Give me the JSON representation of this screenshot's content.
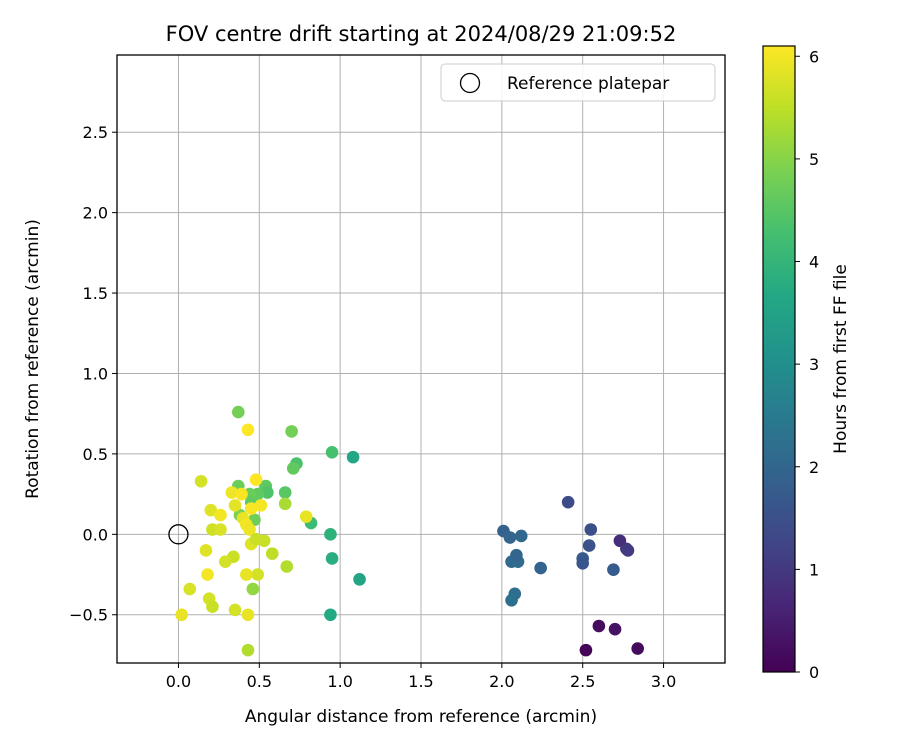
{
  "chart_data": {
    "type": "scatter",
    "title": "FOV centre drift starting at 2024/08/29 21:09:52",
    "xlabel": "Angular distance from reference (arcmin)",
    "ylabel": "Rotation from reference (arcmin)",
    "xlim": [
      -0.38,
      3.38
    ],
    "ylim": [
      -0.8,
      2.98
    ],
    "xticks": [
      0.0,
      0.5,
      1.0,
      1.5,
      2.0,
      2.5,
      3.0
    ],
    "xtick_labels": [
      "0.0",
      "0.5",
      "1.0",
      "1.5",
      "2.0",
      "2.5",
      "3.0"
    ],
    "yticks": [
      -0.5,
      0.0,
      0.5,
      1.0,
      1.5,
      2.0,
      2.5
    ],
    "ytick_labels": [
      "−0.5",
      "0.0",
      "0.5",
      "1.0",
      "1.5",
      "2.0",
      "2.5"
    ],
    "grid": true,
    "legend": {
      "placement": "top-right",
      "entries": [
        "Reference platepar"
      ]
    },
    "colorbar": {
      "label": "Hours from first FF file",
      "colormap": "viridis",
      "range": [
        0,
        6.1
      ],
      "ticks": [
        0,
        1,
        2,
        3,
        4,
        5,
        6
      ],
      "tick_labels": [
        "0",
        "1",
        "2",
        "3",
        "4",
        "5",
        "6"
      ]
    },
    "reference_point": {
      "x": 0.0,
      "y": 0.0,
      "label": "Reference platepar"
    },
    "series": [
      {
        "points": [
          {
            "x": 2.52,
            "y": -0.72,
            "h": 0.05
          },
          {
            "x": 2.6,
            "y": -0.57,
            "h": 0.2
          },
          {
            "x": 2.7,
            "y": -0.59,
            "h": 0.3
          },
          {
            "x": 2.84,
            "y": -0.71,
            "h": 0.15
          },
          {
            "x": 2.73,
            "y": -0.04,
            "h": 0.8
          },
          {
            "x": 2.77,
            "y": -0.09,
            "h": 0.95
          },
          {
            "x": 2.78,
            "y": -0.1,
            "h": 1.05
          },
          {
            "x": 2.55,
            "y": 0.03,
            "h": 1.5
          },
          {
            "x": 2.54,
            "y": -0.07,
            "h": 1.55
          },
          {
            "x": 2.5,
            "y": -0.15,
            "h": 1.7
          },
          {
            "x": 2.5,
            "y": -0.18,
            "h": 1.6
          },
          {
            "x": 2.69,
            "y": -0.22,
            "h": 1.75
          },
          {
            "x": 2.41,
            "y": 0.2,
            "h": 1.4
          },
          {
            "x": 2.24,
            "y": -0.21,
            "h": 1.95
          },
          {
            "x": 2.01,
            "y": 0.02,
            "h": 1.9
          },
          {
            "x": 2.05,
            "y": -0.02,
            "h": 2.0
          },
          {
            "x": 2.12,
            "y": -0.01,
            "h": 2.05
          },
          {
            "x": 2.06,
            "y": -0.17,
            "h": 2.1
          },
          {
            "x": 2.1,
            "y": -0.17,
            "h": 2.15
          },
          {
            "x": 2.09,
            "y": -0.13,
            "h": 2.0
          },
          {
            "x": 2.08,
            "y": -0.37,
            "h": 2.2
          },
          {
            "x": 2.06,
            "y": -0.41,
            "h": 2.25
          },
          {
            "x": 1.08,
            "y": 0.48,
            "h": 3.6
          },
          {
            "x": 1.12,
            "y": -0.28,
            "h": 3.55
          },
          {
            "x": 0.94,
            "y": -0.5,
            "h": 3.7
          },
          {
            "x": 0.95,
            "y": -0.15,
            "h": 3.8
          },
          {
            "x": 0.94,
            "y": 0.0,
            "h": 3.9
          },
          {
            "x": 0.95,
            "y": 0.51,
            "h": 4.3
          },
          {
            "x": 0.82,
            "y": 0.07,
            "h": 4.15
          },
          {
            "x": 0.73,
            "y": 0.44,
            "h": 4.35
          },
          {
            "x": 0.71,
            "y": 0.41,
            "h": 4.6
          },
          {
            "x": 0.7,
            "y": 0.64,
            "h": 4.8
          },
          {
            "x": 0.66,
            "y": 0.26,
            "h": 4.5
          },
          {
            "x": 0.54,
            "y": 0.3,
            "h": 4.55
          },
          {
            "x": 0.55,
            "y": 0.26,
            "h": 4.4
          },
          {
            "x": 0.49,
            "y": 0.25,
            "h": 4.6
          },
          {
            "x": 0.44,
            "y": 0.25,
            "h": 4.7
          },
          {
            "x": 0.37,
            "y": 0.76,
            "h": 4.8
          },
          {
            "x": 0.37,
            "y": 0.3,
            "h": 4.7
          },
          {
            "x": 0.38,
            "y": 0.12,
            "h": 4.9
          },
          {
            "x": 0.47,
            "y": 0.09,
            "h": 4.75
          },
          {
            "x": 0.45,
            "y": 0.2,
            "h": 4.6
          },
          {
            "x": 0.66,
            "y": 0.19,
            "h": 5.3
          },
          {
            "x": 0.67,
            "y": -0.2,
            "h": 5.4
          },
          {
            "x": 0.58,
            "y": -0.12,
            "h": 5.5
          },
          {
            "x": 0.53,
            "y": -0.04,
            "h": 5.6
          },
          {
            "x": 0.49,
            "y": -0.25,
            "h": 5.7
          },
          {
            "x": 0.46,
            "y": -0.34,
            "h": 5.1
          },
          {
            "x": 0.43,
            "y": -0.5,
            "h": 5.9
          },
          {
            "x": 0.43,
            "y": -0.72,
            "h": 5.4
          },
          {
            "x": 0.35,
            "y": -0.47,
            "h": 5.7
          },
          {
            "x": 0.42,
            "y": -0.25,
            "h": 5.9
          },
          {
            "x": 0.34,
            "y": -0.14,
            "h": 5.6
          },
          {
            "x": 0.29,
            "y": -0.17,
            "h": 5.7
          },
          {
            "x": 0.17,
            "y": -0.1,
            "h": 5.8
          },
          {
            "x": 0.18,
            "y": -0.25,
            "h": 6.0
          },
          {
            "x": 0.19,
            "y": -0.4,
            "h": 5.7
          },
          {
            "x": 0.21,
            "y": -0.45,
            "h": 5.6
          },
          {
            "x": 0.07,
            "y": -0.34,
            "h": 5.75
          },
          {
            "x": 0.02,
            "y": -0.5,
            "h": 5.9
          },
          {
            "x": 0.14,
            "y": 0.33,
            "h": 5.7
          },
          {
            "x": 0.2,
            "y": 0.15,
            "h": 5.8
          },
          {
            "x": 0.26,
            "y": 0.12,
            "h": 6.0
          },
          {
            "x": 0.21,
            "y": 0.03,
            "h": 5.65
          },
          {
            "x": 0.26,
            "y": 0.03,
            "h": 5.75
          },
          {
            "x": 0.33,
            "y": 0.26,
            "h": 5.95
          },
          {
            "x": 0.35,
            "y": 0.18,
            "h": 5.85
          },
          {
            "x": 0.39,
            "y": 0.25,
            "h": 6.05
          },
          {
            "x": 0.4,
            "y": 0.1,
            "h": 5.9
          },
          {
            "x": 0.42,
            "y": 0.06,
            "h": 6.0
          },
          {
            "x": 0.44,
            "y": 0.03,
            "h": 5.95
          },
          {
            "x": 0.45,
            "y": 0.16,
            "h": 6.05
          },
          {
            "x": 0.48,
            "y": 0.34,
            "h": 6.1
          },
          {
            "x": 0.51,
            "y": 0.18,
            "h": 6.0
          },
          {
            "x": 0.43,
            "y": 0.65,
            "h": 6.1
          },
          {
            "x": 0.45,
            "y": -0.06,
            "h": 5.8
          },
          {
            "x": 0.48,
            "y": -0.03,
            "h": 5.6
          },
          {
            "x": 0.79,
            "y": 0.11,
            "h": 5.9
          }
        ]
      }
    ]
  }
}
